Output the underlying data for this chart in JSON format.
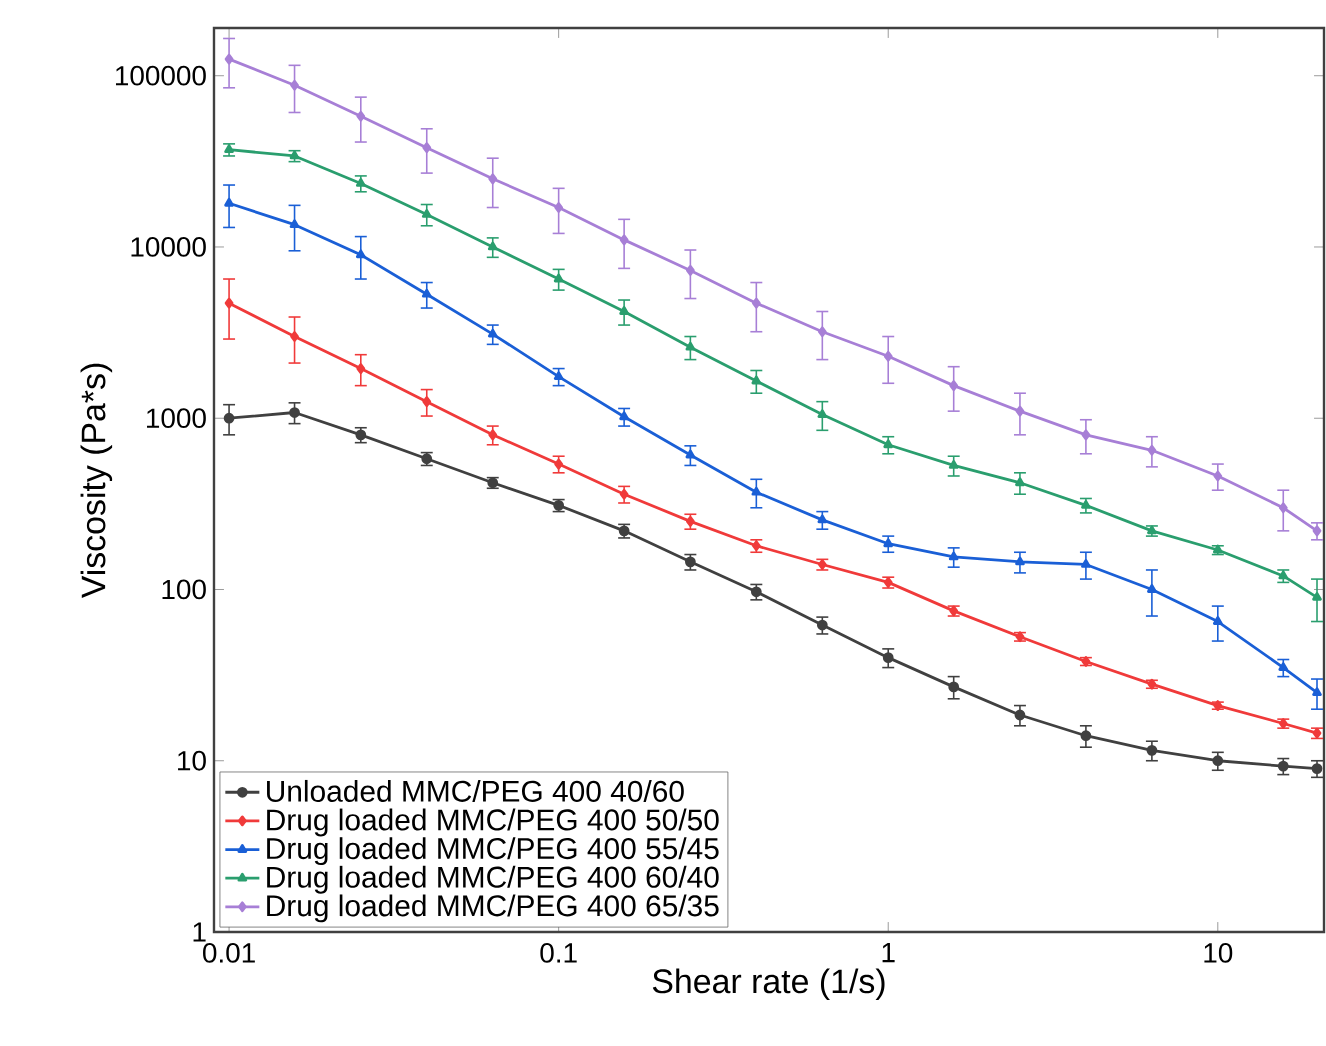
{
  "chart_data": {
    "type": "line",
    "xlabel": "Shear rate (1/s)",
    "ylabel": "Viscosity (Pa*s)",
    "log": "xy",
    "xlim": [
      0.009,
      21
    ],
    "ylim": [
      1,
      190000
    ],
    "xticks": [
      0.01,
      0.1,
      1,
      10
    ],
    "yticks": [
      1,
      10,
      100,
      1000,
      10000,
      100000
    ],
    "x": [
      0.01,
      0.0158,
      0.0251,
      0.0398,
      0.0631,
      0.1,
      0.158,
      0.251,
      0.398,
      0.631,
      1,
      1.58,
      2.51,
      3.98,
      6.31,
      10,
      15.8,
      20
    ],
    "legend": "bottom left",
    "grid": false,
    "line_style": "solid",
    "series": [
      {
        "name": "Unloaded MMC/PEG 400 40/60",
        "color": "#404040",
        "marker": "circle",
        "values": [
          1000,
          1080,
          800,
          580,
          420,
          310,
          220,
          145,
          97,
          62,
          40,
          27,
          18.5,
          14,
          11.5,
          10,
          9.3,
          9
        ],
        "errors": [
          200,
          150,
          80,
          50,
          30,
          25,
          20,
          15,
          10,
          7,
          5,
          4,
          2.5,
          2,
          1.5,
          1.2,
          1,
          1
        ]
      },
      {
        "name": "Drug loaded MMC/PEG 400 50/50",
        "color": "#f03a3a",
        "marker": "diamond",
        "values": [
          4700,
          3000,
          1950,
          1250,
          800,
          540,
          360,
          250,
          180,
          140,
          110,
          75,
          53,
          38,
          28,
          21,
          16.5,
          14.5
        ],
        "errors": [
          1800,
          900,
          400,
          220,
          100,
          60,
          40,
          25,
          15,
          10,
          8,
          5,
          3,
          2,
          1.5,
          1,
          1,
          1
        ]
      },
      {
        "name": "Drug loaded MMC/PEG 400 55/45",
        "color": "#1a5fd6",
        "marker": "triangle",
        "values": [
          18000,
          13500,
          9000,
          5300,
          3100,
          1750,
          1020,
          610,
          370,
          255,
          185,
          155,
          145,
          140,
          100,
          65,
          35,
          25
        ],
        "errors": [
          5000,
          4000,
          2500,
          900,
          400,
          200,
          120,
          80,
          70,
          30,
          20,
          20,
          20,
          25,
          30,
          15,
          4,
          5
        ]
      },
      {
        "name": "Drug loaded MMC/PEG 400 60/40",
        "color": "#2a9e6e",
        "marker": "triangle",
        "values": [
          37000,
          34000,
          23500,
          15500,
          10000,
          6500,
          4200,
          2600,
          1650,
          1050,
          700,
          530,
          420,
          310,
          220,
          170,
          120,
          90
        ],
        "errors": [
          3000,
          2500,
          2500,
          2200,
          1300,
          900,
          700,
          400,
          250,
          200,
          80,
          70,
          60,
          30,
          15,
          10,
          10,
          25
        ]
      },
      {
        "name": "Drug loaded MMC/PEG 400 65/35",
        "color": "#a77fd6",
        "marker": "diamond",
        "values": [
          125000,
          88000,
          58000,
          38000,
          25000,
          17000,
          11000,
          7300,
          4700,
          3200,
          2300,
          1550,
          1100,
          800,
          650,
          460,
          300,
          220
        ],
        "errors": [
          40000,
          27000,
          17000,
          11000,
          8000,
          5000,
          3500,
          2300,
          1500,
          1000,
          700,
          450,
          300,
          180,
          130,
          80,
          80,
          25
        ]
      }
    ]
  }
}
